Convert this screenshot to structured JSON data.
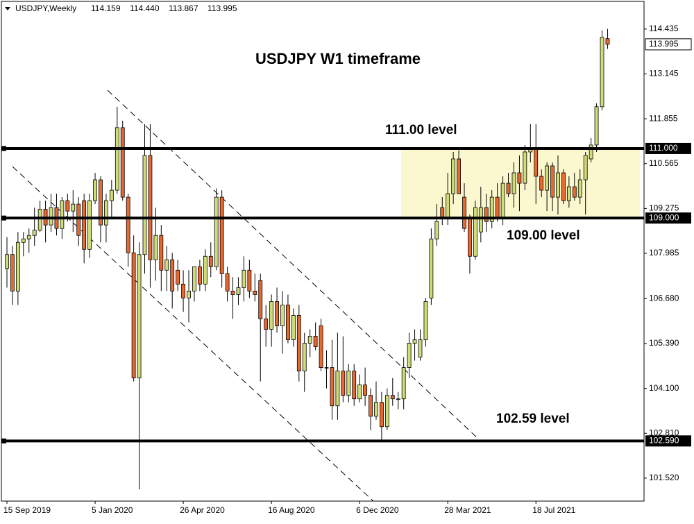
{
  "chart_data": {
    "type": "candlestick",
    "header": {
      "symbol": "USDJPY,Weekly",
      "ohlc": [
        "114.159",
        "114.440",
        "113.867",
        "113.995"
      ]
    },
    "title": "USDJPY W1 timeframe",
    "up_color": "#cfdc78",
    "down_color": "#e8692f",
    "zone_color": "#fbf8cf",
    "categories": [
      "15 Sep 2019",
      null,
      null,
      null,
      null,
      null,
      null,
      null,
      null,
      null,
      null,
      null,
      null,
      null,
      null,
      null,
      "5 Jan 2020",
      null,
      null,
      null,
      null,
      null,
      null,
      null,
      null,
      null,
      null,
      null,
      null,
      null,
      null,
      null,
      "26 Apr 2020",
      null,
      null,
      null,
      null,
      null,
      null,
      null,
      null,
      null,
      null,
      null,
      null,
      null,
      null,
      null,
      "16 Aug 2020",
      null,
      null,
      null,
      null,
      null,
      null,
      null,
      null,
      null,
      null,
      null,
      null,
      null,
      null,
      null,
      "6 Dec 2020",
      null,
      null,
      null,
      null,
      null,
      null,
      null,
      null,
      null,
      null,
      null,
      null,
      null,
      null,
      null,
      "28 Mar 2021",
      null,
      null,
      null,
      null,
      null,
      null,
      null,
      null,
      null,
      null,
      null,
      null,
      null,
      null,
      null,
      "18 Jul 2021",
      null,
      null,
      null,
      null,
      null,
      null,
      null,
      null,
      null,
      null,
      null,
      null,
      null
    ],
    "open": [
      107.55,
      107.95,
      106.9,
      108.3,
      108.4,
      108.5,
      108.65,
      109.25,
      108.8,
      109.3,
      108.7,
      109.5,
      109.2,
      109.4,
      109.5,
      108.1,
      109.5,
      110.1,
      108.8,
      109.5,
      109.8,
      111.6,
      109.6,
      108.0,
      104.4,
      107.95,
      110.8,
      107.8,
      108.5,
      107.5,
      107.8,
      107.5,
      107.1,
      106.7,
      106.9,
      107.6,
      107.1,
      107.9,
      107.6,
      109.6,
      107.4,
      106.9,
      106.8,
      107.0,
      107.5,
      106.9,
      107.2,
      106.1,
      105.8,
      106.6,
      105.9,
      106.5,
      105.5,
      106.2,
      104.6,
      105.4,
      105.6,
      105.9,
      104.7,
      104.7,
      103.6,
      104.6,
      103.9,
      104.6,
      103.8,
      104.2,
      103.9,
      103.3,
      103.7,
      103.0,
      103.9,
      103.8,
      103.8,
      104.7,
      105.4,
      105.0,
      105.5,
      106.7,
      108.4,
      109.3,
      109.0,
      109.7,
      110.7,
      109.6,
      109.0,
      107.9,
      108.6,
      109.3,
      108.9,
      109.6,
      109.0,
      110.0,
      109.7,
      110.3,
      110.0,
      110.9,
      111.0,
      110.2,
      109.8,
      110.5,
      109.6,
      110.3,
      109.5,
      109.9,
      109.6,
      110.1,
      110.7,
      111.1,
      112.2,
      114.159
    ],
    "high": [
      108.45,
      108.2,
      108.6,
      108.6,
      108.7,
      109.3,
      109.5,
      109.5,
      109.7,
      109.7,
      109.6,
      109.7,
      109.8,
      109.6,
      109.7,
      109.7,
      110.3,
      110.2,
      109.7,
      110.1,
      112.2,
      111.8,
      109.7,
      108.5,
      108.3,
      111.7,
      111.7,
      109.3,
      108.8,
      108.2,
      108.0,
      107.8,
      107.5,
      107.5,
      107.6,
      107.8,
      108.1,
      108.3,
      109.85,
      109.8,
      107.6,
      107.3,
      107.3,
      107.9,
      107.8,
      107.4,
      107.4,
      106.5,
      106.8,
      107.0,
      106.9,
      106.8,
      106.4,
      106.5,
      105.7,
      105.8,
      106.0,
      106.1,
      105.2,
      105.5,
      105.7,
      105.6,
      104.8,
      104.8,
      104.5,
      104.7,
      104.1,
      104.3,
      104.0,
      104.1,
      104.4,
      104.0,
      105.0,
      105.7,
      105.8,
      105.8,
      106.7,
      108.7,
      109.4,
      109.6,
      110.3,
      110.9,
      110.95,
      110.0,
      109.1,
      109.5,
      109.9,
      109.7,
      109.8,
      110.0,
      110.2,
      110.3,
      110.6,
      110.8,
      111.1,
      111.7,
      111.7,
      110.4,
      110.6,
      110.6,
      110.8,
      110.4,
      110.2,
      110.3,
      110.4,
      110.9,
      111.3,
      112.3,
      114.4,
      114.44
    ],
    "low": [
      107.0,
      106.5,
      106.5,
      107.9,
      108.0,
      108.2,
      108.6,
      108.3,
      108.6,
      108.5,
      108.4,
      108.9,
      108.6,
      108.2,
      107.7,
      107.85,
      109.4,
      108.3,
      108.3,
      109.0,
      109.7,
      109.5,
      107.6,
      104.3,
      101.2,
      107.4,
      107.0,
      107.2,
      106.9,
      106.9,
      106.4,
      106.9,
      106.3,
      106.0,
      106.6,
      106.9,
      106.9,
      107.3,
      107.5,
      107.0,
      106.6,
      106.1,
      106.5,
      106.6,
      106.7,
      106.6,
      104.3,
      105.3,
      105.3,
      105.7,
      105.1,
      105.4,
      105.3,
      104.3,
      104.0,
      105.0,
      105.2,
      104.6,
      104.1,
      103.2,
      103.2,
      103.7,
      103.7,
      103.6,
      103.7,
      103.6,
      102.9,
      103.2,
      102.6,
      102.9,
      103.6,
      103.5,
      103.5,
      104.4,
      104.9,
      104.9,
      105.3,
      106.5,
      108.2,
      108.8,
      108.8,
      109.4,
      109.7,
      108.6,
      107.4,
      107.8,
      108.3,
      108.6,
      108.7,
      108.9,
      108.8,
      109.6,
      109.3,
      109.2,
      109.8,
      110.6,
      109.4,
      109.6,
      109.2,
      109.2,
      109.1,
      109.4,
      109.3,
      109.5,
      109.4,
      109.1,
      110.6,
      110.9,
      112.1,
      113.867
    ],
    "close": [
      107.95,
      106.9,
      108.3,
      108.4,
      108.5,
      108.65,
      109.25,
      108.8,
      109.3,
      108.7,
      109.5,
      109.2,
      109.4,
      108.5,
      108.1,
      109.5,
      110.1,
      108.8,
      109.5,
      109.8,
      111.6,
      109.6,
      108.0,
      104.4,
      107.95,
      110.8,
      107.8,
      108.5,
      107.5,
      107.8,
      106.9,
      107.1,
      106.7,
      106.9,
      107.6,
      107.1,
      107.9,
      107.6,
      109.6,
      107.4,
      106.9,
      106.8,
      107.0,
      107.5,
      106.9,
      106.8,
      106.1,
      105.8,
      106.6,
      105.9,
      106.5,
      105.5,
      106.2,
      104.6,
      105.4,
      105.6,
      105.3,
      104.7,
      104.7,
      103.6,
      104.6,
      103.9,
      104.6,
      103.8,
      104.2,
      103.9,
      103.3,
      103.7,
      103.0,
      103.9,
      103.8,
      103.8,
      104.7,
      105.4,
      105.5,
      105.5,
      106.6,
      108.4,
      108.9,
      109.0,
      109.7,
      110.7,
      109.7,
      108.7,
      107.9,
      109.3,
      109.3,
      108.9,
      109.6,
      109.0,
      110.0,
      109.7,
      110.3,
      110.0,
      110.9,
      111.0,
      110.2,
      109.8,
      110.5,
      109.6,
      110.3,
      109.5,
      109.9,
      109.6,
      110.1,
      110.8,
      111.1,
      112.2,
      114.2,
      113.995
    ],
    "ylim": [
      100.86,
      115.23
    ],
    "yticks": [
      {
        "value": 114.435,
        "label": "114.435"
      },
      {
        "value": 113.145,
        "label": "113.145"
      },
      {
        "value": 111.855,
        "label": "111.855"
      },
      {
        "value": 110.565,
        "label": "110.565"
      },
      {
        "value": 109.275,
        "label": "109.275"
      },
      {
        "value": 107.985,
        "label": "107.985"
      },
      {
        "value": 106.68,
        "label": "106.680"
      },
      {
        "value": 105.39,
        "label": "105.390"
      },
      {
        "value": 104.1,
        "label": "104.100"
      },
      {
        "value": 102.81,
        "label": "102.810"
      },
      {
        "value": 101.52,
        "label": "101.520"
      }
    ],
    "zone": [
      109,
      111
    ],
    "levels": [
      {
        "value": 111,
        "label": "111.000",
        "text": "111.00 level"
      },
      {
        "value": 109,
        "label": "109.000",
        "text": "109.00 level"
      },
      {
        "value": 102.59,
        "label": "102.590",
        "text": "102.59 level"
      }
    ],
    "last_price": 113.995
  }
}
